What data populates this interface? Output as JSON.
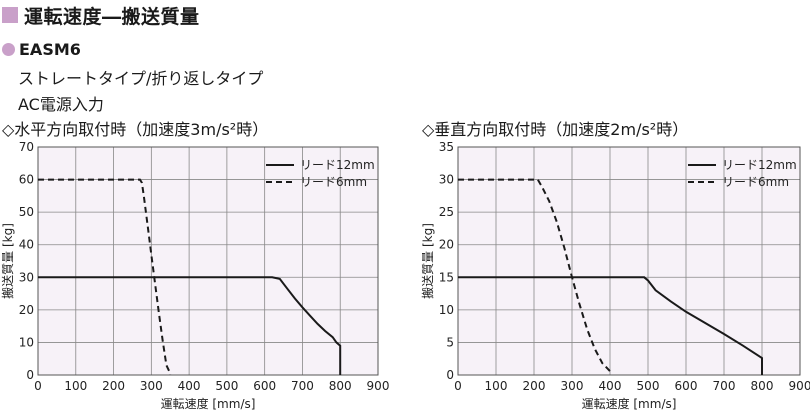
{
  "header": {
    "title": "運転速度―搬送質量"
  },
  "model": {
    "name": "EASM6",
    "line1": "ストレートタイプ/折り返しタイプ",
    "line2": "AC電源入力"
  },
  "colors": {
    "accent": "#c9a0c9",
    "plot_bg": "#f7f2f8",
    "grid": "#888888",
    "line": "#1a1a1a"
  },
  "chart_data": [
    {
      "type": "line",
      "title": "◇水平方向取付時（加速度3m/s²時）",
      "xlabel": "運転速度 [mm/s]",
      "ylabel": "搬送質量 [kg]",
      "xlim": [
        0,
        900
      ],
      "ylim": [
        0,
        70
      ],
      "xticks": [
        0,
        100,
        200,
        300,
        400,
        500,
        600,
        700,
        800,
        900
      ],
      "yticks": [
        0,
        10,
        20,
        30,
        40,
        50,
        60,
        70
      ],
      "grid": true,
      "legend_position": "top-right",
      "series": [
        {
          "name": "リード12mm",
          "style": "solid",
          "x": [
            0,
            620,
            640,
            660,
            680,
            700,
            720,
            740,
            760,
            780,
            790,
            800,
            800
          ],
          "y": [
            30,
            30,
            29.5,
            26.5,
            23.5,
            20.8,
            18.2,
            15.7,
            13.5,
            11.6,
            10,
            9,
            0
          ]
        },
        {
          "name": "リード6mm",
          "style": "dashed",
          "x": [
            0,
            270,
            275,
            280,
            290,
            300,
            310,
            320,
            330,
            340,
            350,
            350
          ],
          "y": [
            60,
            60,
            59,
            55,
            46,
            37,
            28,
            19,
            10.5,
            3,
            0.5,
            0
          ]
        }
      ]
    },
    {
      "type": "line",
      "title": "◇垂直方向取付時（加速度2m/s²時）",
      "xlabel": "運転速度 [mm/s]",
      "ylabel": "搬送質量 [kg]",
      "xlim": [
        0,
        900
      ],
      "ylim": [
        0,
        35
      ],
      "xticks": [
        0,
        100,
        200,
        300,
        400,
        500,
        600,
        700,
        800,
        900
      ],
      "yticks": [
        0,
        5,
        10,
        15,
        20,
        25,
        30,
        35
      ],
      "grid": true,
      "legend_position": "top-right",
      "series": [
        {
          "name": "リード12mm",
          "style": "solid",
          "x": [
            0,
            490,
            500,
            520,
            560,
            600,
            650,
            700,
            750,
            800,
            800
          ],
          "y": [
            15,
            15,
            14.5,
            13,
            11.3,
            9.7,
            8,
            6.3,
            4.5,
            2.6,
            0
          ]
        },
        {
          "name": "リード6mm",
          "style": "dashed",
          "x": [
            0,
            210,
            220,
            240,
            260,
            280,
            300,
            320,
            340,
            360,
            380,
            400,
            400
          ],
          "y": [
            30,
            30,
            29,
            26.7,
            23.5,
            19.5,
            15,
            10.8,
            7,
            4,
            1.8,
            0.6,
            0
          ]
        }
      ]
    }
  ]
}
